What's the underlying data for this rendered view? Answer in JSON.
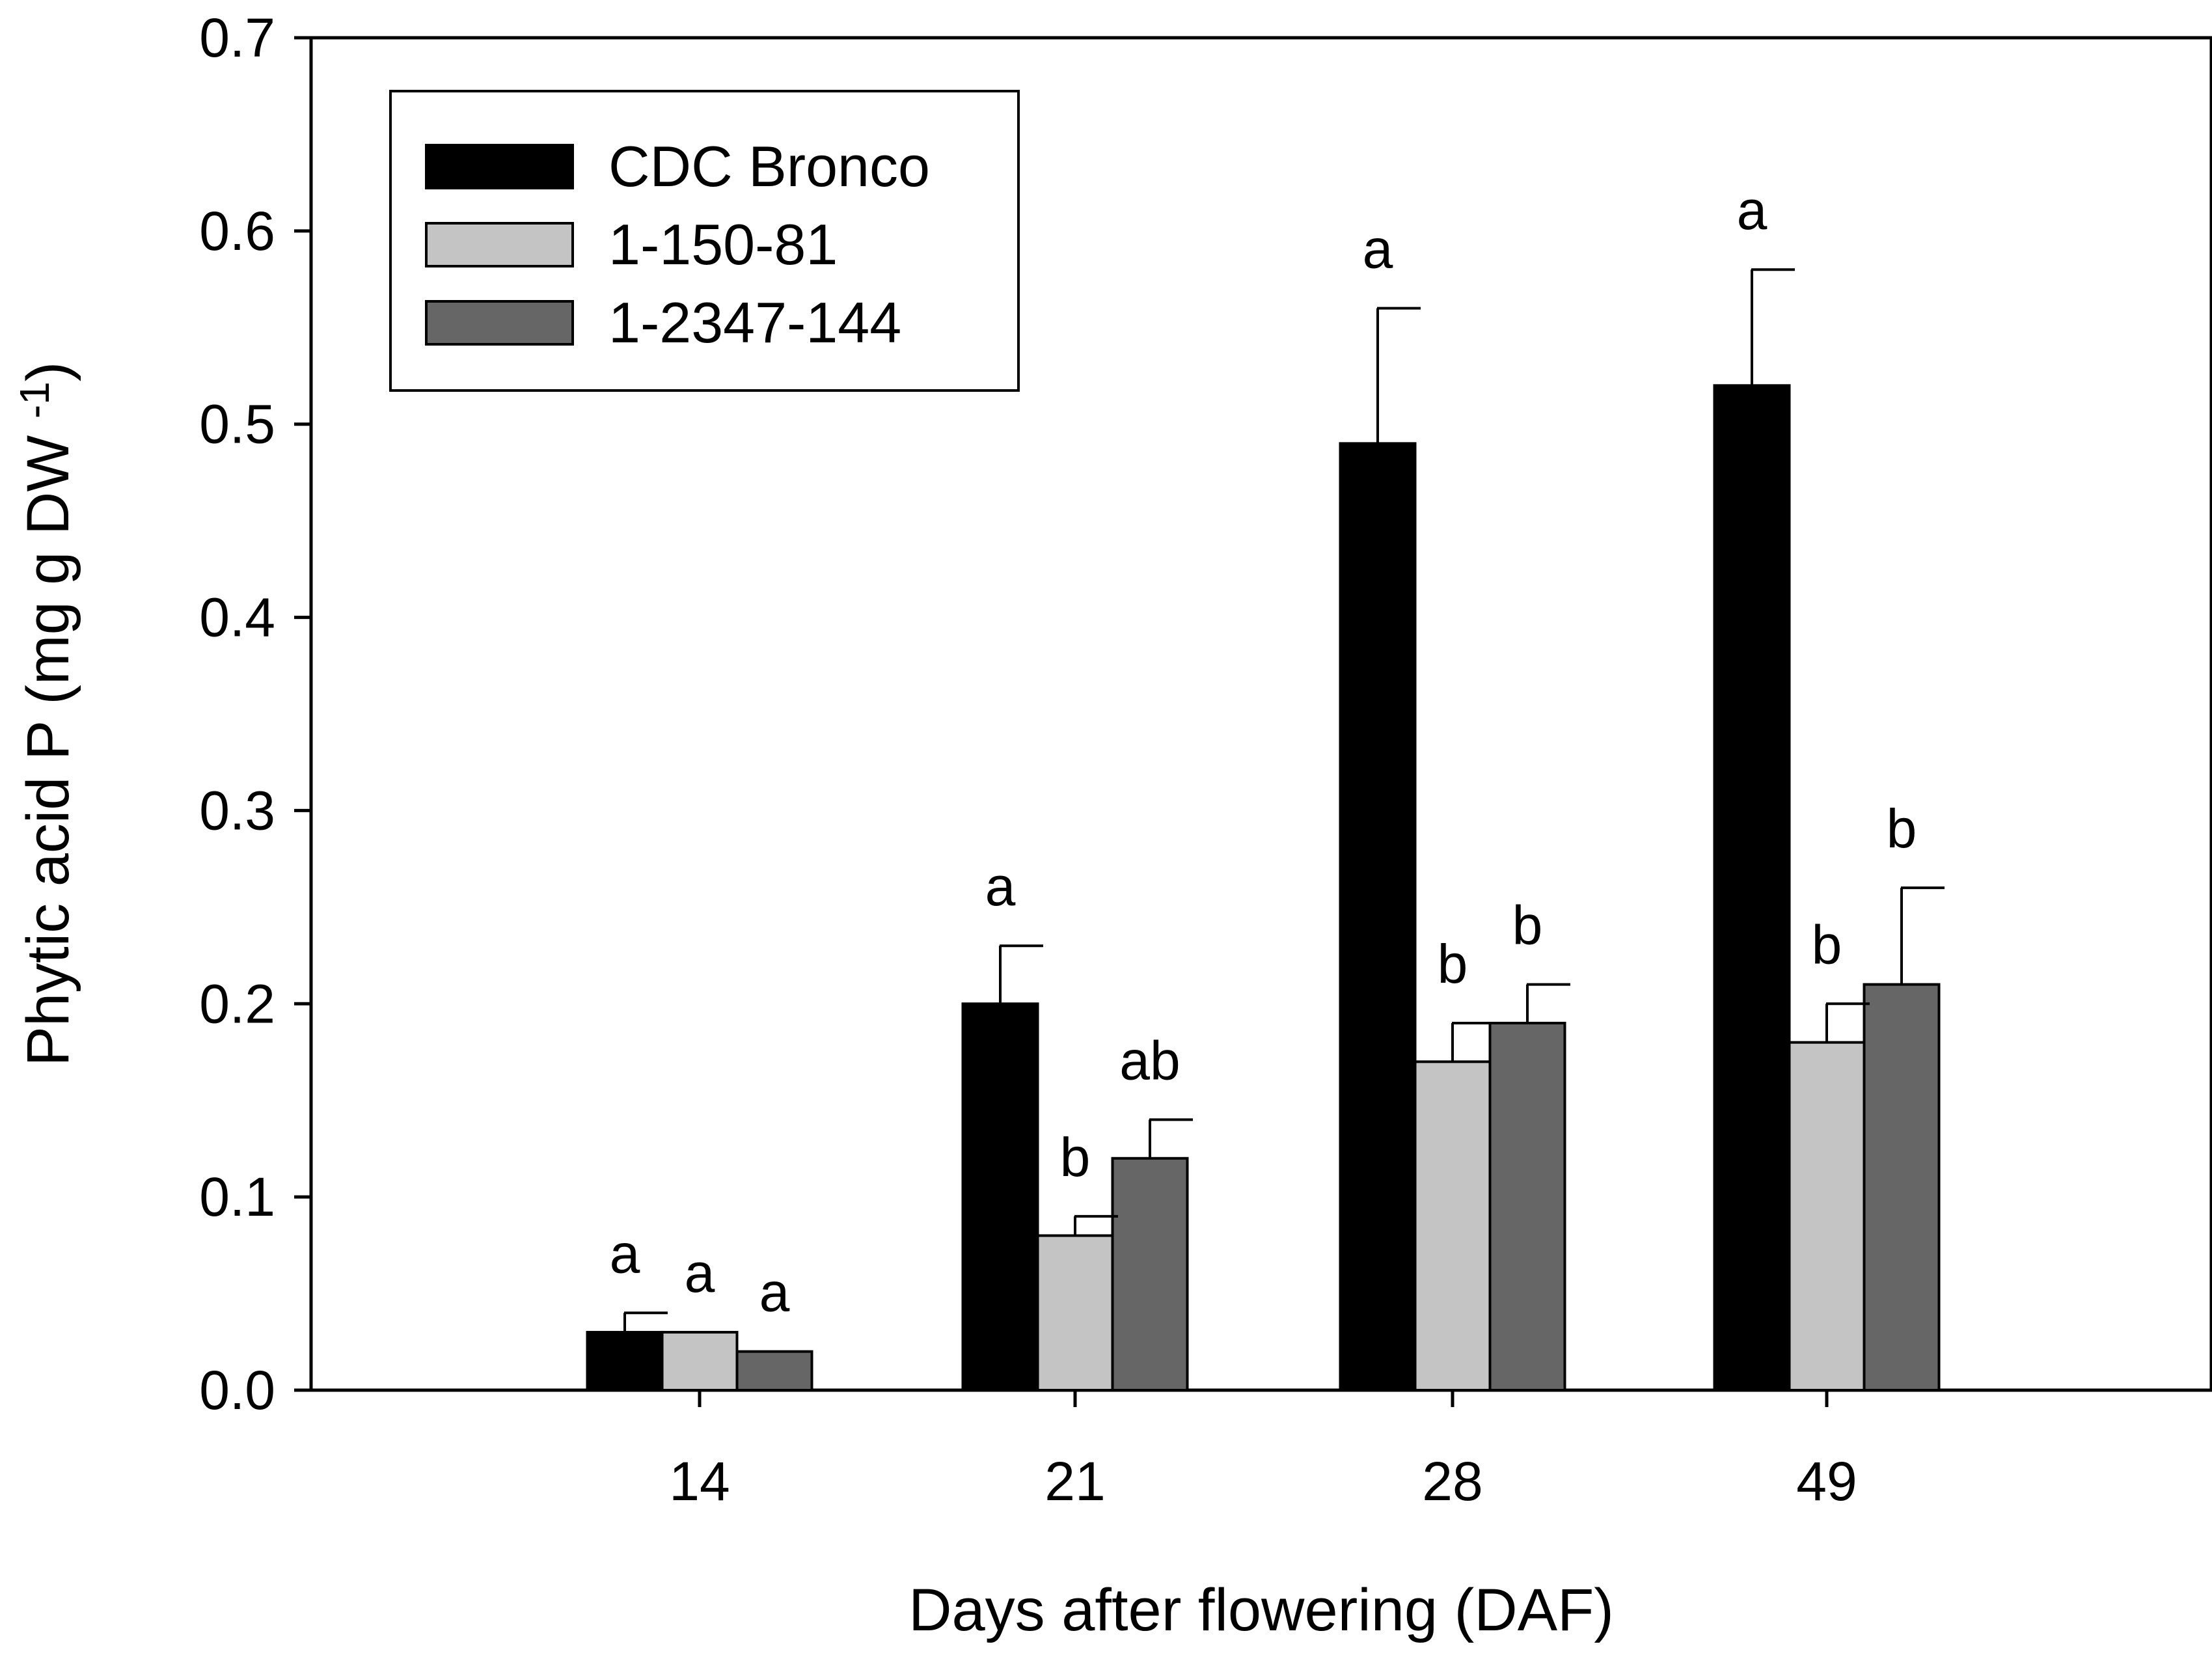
{
  "chart_data": {
    "type": "bar",
    "title": "",
    "xlabel": "Days after flowering (DAF)",
    "ylabel": "Phytic acid P (mg g DW ",
    "ylabel_superscript": "-1",
    "ylabel_close": ")",
    "categories": [
      "14",
      "21",
      "28",
      "49"
    ],
    "ylim": [
      0,
      0.7
    ],
    "yticks": [
      0.0,
      0.1,
      0.2,
      0.3,
      0.4,
      0.5,
      0.6,
      0.7
    ],
    "ytick_labels": [
      "0.0",
      "0.1",
      "0.2",
      "0.3",
      "0.4",
      "0.5",
      "0.6",
      "0.7"
    ],
    "legend_position": "top-left",
    "grid": false,
    "series": [
      {
        "name": "CDC Bronco",
        "color": "#000000",
        "values": [
          0.03,
          0.2,
          0.49,
          0.52
        ],
        "errors": [
          0.01,
          0.03,
          0.07,
          0.06
        ],
        "letters": [
          "a",
          "a",
          "a",
          "a"
        ]
      },
      {
        "name": "1-150-81",
        "color": "#c4c4c4",
        "values": [
          0.03,
          0.08,
          0.17,
          0.18
        ],
        "errors": [
          0.0,
          0.01,
          0.02,
          0.02
        ],
        "letters": [
          "a",
          "b",
          "b",
          "b"
        ]
      },
      {
        "name": "1-2347-144",
        "color": "#666666",
        "values": [
          0.02,
          0.12,
          0.19,
          0.21
        ],
        "errors": [
          0.0,
          0.02,
          0.02,
          0.05
        ],
        "letters": [
          "a",
          "ab",
          "b",
          "b"
        ]
      }
    ]
  }
}
